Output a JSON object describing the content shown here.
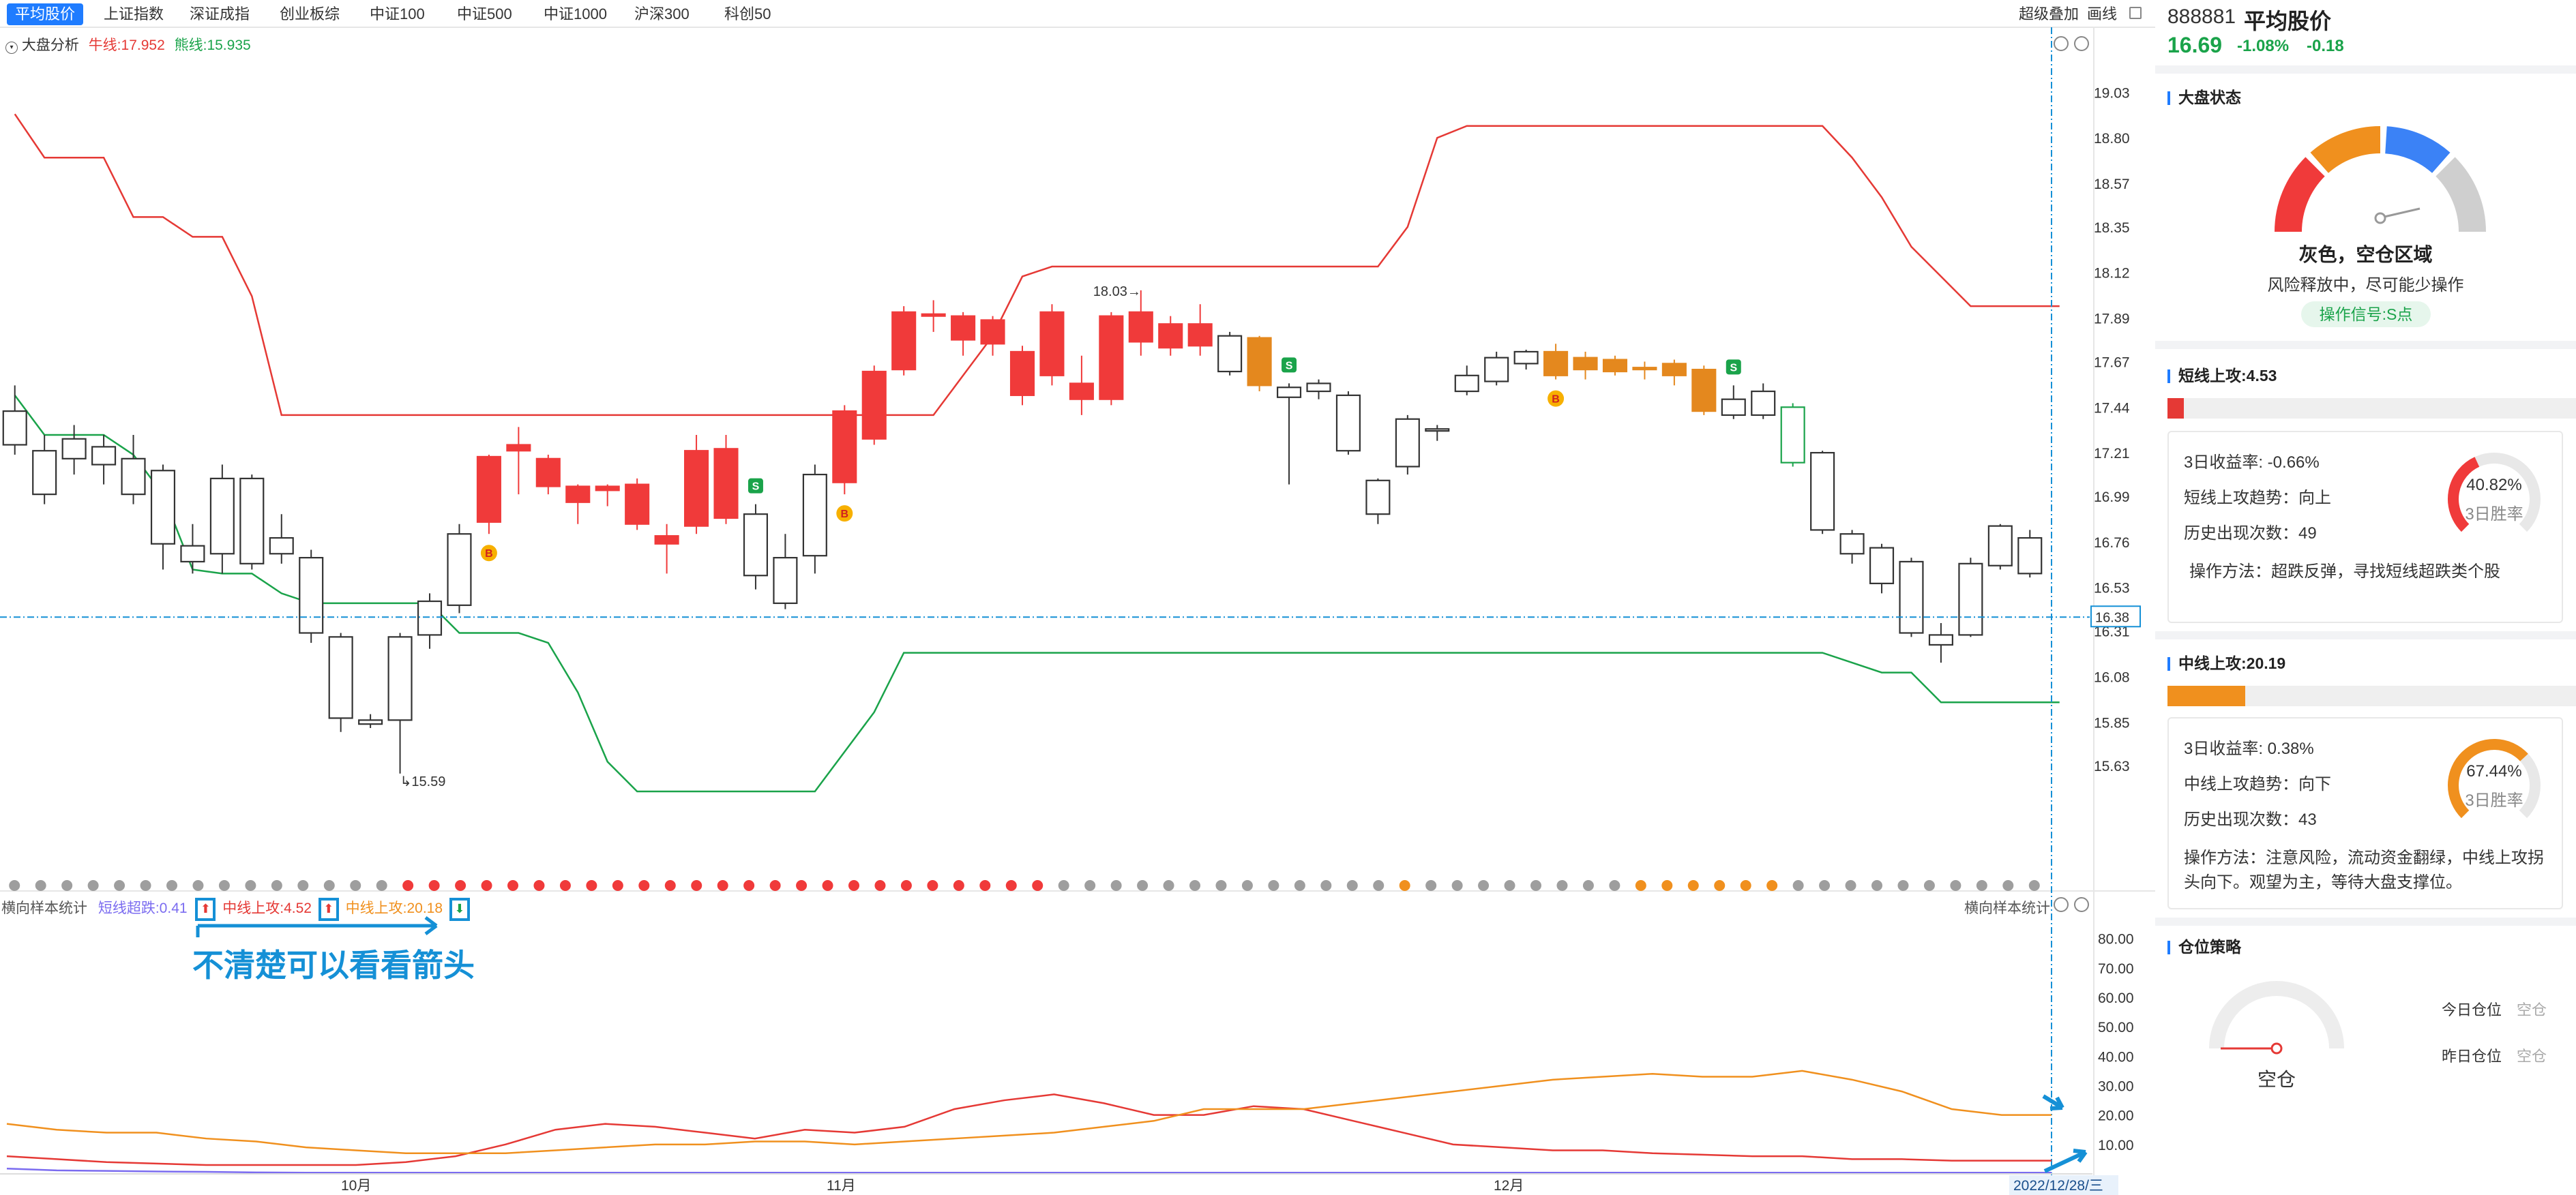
{
  "tabs": [
    {
      "label": "平均股价",
      "active": true
    },
    {
      "label": "上证指数"
    },
    {
      "label": "深证成指"
    },
    {
      "label": "创业板综"
    },
    {
      "label": "中证100"
    },
    {
      "label": "中证500"
    },
    {
      "label": "中证1000"
    },
    {
      "label": "沪深300"
    },
    {
      "label": "科创50"
    }
  ],
  "toolbar": {
    "overlay": "超级叠加",
    "draw": "画线"
  },
  "main_indicator": {
    "name": "大盘分析",
    "bull": "牛线:17.952",
    "bear": "熊线:15.935"
  },
  "sub_indicator": {
    "name": "横向样本统计",
    "short": "短线超跌:0.41",
    "mid": "中线上攻:4.52",
    "mid2": "中线上攻:20.18",
    "right_name": "横向样本统计"
  },
  "annotation": {
    "text": "不清楚可以看看箭头"
  },
  "chart_data": [
    {
      "type": "candlestick",
      "title": "大盘分析",
      "y_ticks": [
        "19.03",
        "18.80",
        "18.57",
        "18.35",
        "18.12",
        "17.89",
        "17.67",
        "17.44",
        "17.21",
        "16.99",
        "16.76",
        "16.53",
        "16.31",
        "16.08",
        "15.85",
        "15.63"
      ],
      "ylim": [
        15.4,
        19.1
      ],
      "crosshair_value": "16.38",
      "high_label": "18.03",
      "low_label": "15.59",
      "x_labels": [
        "10月",
        "11月",
        "12月"
      ],
      "date_label": "2022/12/28/三",
      "candles": [
        [
          17.42,
          17.25,
          17.55,
          17.2,
          "w"
        ],
        [
          17.22,
          17.0,
          17.3,
          16.95,
          "w"
        ],
        [
          17.18,
          17.28,
          17.35,
          17.1,
          "w"
        ],
        [
          17.15,
          17.24,
          17.3,
          17.05,
          "w"
        ],
        [
          17.18,
          17.0,
          17.3,
          16.95,
          "w"
        ],
        [
          17.12,
          16.75,
          17.15,
          16.62,
          "w"
        ],
        [
          16.74,
          16.66,
          16.85,
          16.6,
          "w"
        ],
        [
          17.08,
          16.7,
          17.15,
          16.6,
          "w"
        ],
        [
          17.08,
          16.65,
          17.1,
          16.62,
          "w"
        ],
        [
          16.78,
          16.7,
          16.9,
          16.65,
          "w"
        ],
        [
          16.68,
          16.3,
          16.72,
          16.25,
          "w"
        ],
        [
          16.28,
          15.87,
          16.3,
          15.8,
          "w"
        ],
        [
          15.86,
          15.84,
          15.89,
          15.82,
          "w"
        ],
        [
          16.28,
          15.86,
          16.3,
          15.59,
          "w"
        ],
        [
          16.46,
          16.29,
          16.5,
          16.22,
          "w"
        ],
        [
          16.8,
          16.44,
          16.85,
          16.4,
          "w"
        ],
        [
          16.86,
          17.19,
          17.2,
          16.8,
          "r"
        ],
        [
          17.22,
          17.25,
          17.34,
          17.0,
          "r"
        ],
        [
          17.18,
          17.04,
          17.2,
          17.0,
          "r"
        ],
        [
          17.04,
          16.96,
          17.05,
          16.85,
          "r"
        ],
        [
          17.04,
          17.02,
          17.05,
          16.94,
          "r"
        ],
        [
          17.05,
          16.85,
          17.08,
          16.82,
          "r"
        ],
        [
          16.79,
          16.75,
          16.85,
          16.6,
          "r"
        ],
        [
          16.84,
          17.22,
          17.3,
          16.8,
          "r"
        ],
        [
          16.88,
          17.23,
          17.3,
          16.85,
          "r"
        ],
        [
          16.9,
          16.59,
          16.95,
          16.52,
          "w"
        ],
        [
          16.68,
          16.45,
          16.8,
          16.42,
          "w"
        ],
        [
          16.69,
          17.1,
          17.15,
          16.6,
          "w"
        ],
        [
          17.06,
          17.42,
          17.45,
          17.0,
          "r"
        ],
        [
          17.28,
          17.62,
          17.65,
          17.25,
          "r"
        ],
        [
          17.92,
          17.63,
          17.95,
          17.6,
          "r"
        ],
        [
          17.9,
          17.91,
          17.98,
          17.82,
          "r"
        ],
        [
          17.9,
          17.78,
          17.92,
          17.7,
          "r"
        ],
        [
          17.76,
          17.88,
          17.9,
          17.7,
          "r"
        ],
        [
          17.72,
          17.5,
          17.75,
          17.45,
          "r"
        ],
        [
          17.92,
          17.6,
          17.96,
          17.55,
          "r"
        ],
        [
          17.56,
          17.48,
          17.7,
          17.4,
          "r"
        ],
        [
          17.9,
          17.48,
          17.92,
          17.45,
          "r"
        ],
        [
          17.92,
          17.77,
          18.03,
          17.7,
          "r"
        ],
        [
          17.86,
          17.74,
          17.9,
          17.7,
          "r"
        ],
        [
          17.86,
          17.75,
          17.96,
          17.7,
          "r"
        ],
        [
          17.8,
          17.62,
          17.82,
          17.6,
          "w"
        ],
        [
          17.79,
          17.55,
          17.8,
          17.52,
          "o"
        ],
        [
          17.49,
          17.54,
          17.56,
          17.05,
          "w"
        ],
        [
          17.56,
          17.52,
          17.58,
          17.48,
          "w"
        ],
        [
          17.5,
          17.22,
          17.52,
          17.2,
          "w"
        ],
        [
          17.07,
          16.9,
          17.08,
          16.85,
          "w"
        ],
        [
          17.38,
          17.14,
          17.4,
          17.1,
          "w"
        ],
        [
          17.33,
          17.32,
          17.35,
          17.27,
          "w"
        ],
        [
          17.6,
          17.52,
          17.65,
          17.5,
          "w"
        ],
        [
          17.69,
          17.57,
          17.72,
          17.55,
          "w"
        ],
        [
          17.72,
          17.66,
          17.73,
          17.63,
          "w"
        ],
        [
          17.72,
          17.6,
          17.76,
          17.58,
          "o"
        ],
        [
          17.69,
          17.63,
          17.72,
          17.58,
          "o"
        ],
        [
          17.68,
          17.62,
          17.7,
          17.6,
          "o"
        ],
        [
          17.64,
          17.63,
          17.67,
          17.58,
          "o"
        ],
        [
          17.66,
          17.6,
          17.68,
          17.55,
          "o"
        ],
        [
          17.63,
          17.42,
          17.65,
          17.4,
          "o"
        ],
        [
          17.48,
          17.4,
          17.55,
          17.38,
          "w"
        ],
        [
          17.52,
          17.4,
          17.56,
          17.38,
          "w"
        ],
        [
          17.44,
          17.16,
          17.46,
          17.14,
          "g"
        ],
        [
          17.21,
          16.82,
          17.22,
          16.8,
          "w"
        ],
        [
          16.8,
          16.7,
          16.82,
          16.65,
          "w"
        ],
        [
          16.73,
          16.55,
          16.75,
          16.5,
          "w"
        ],
        [
          16.66,
          16.3,
          16.68,
          16.28,
          "w"
        ],
        [
          16.29,
          16.24,
          16.35,
          16.15,
          "w"
        ],
        [
          16.65,
          16.29,
          16.68,
          16.28,
          "w"
        ],
        [
          16.84,
          16.64,
          16.85,
          16.62,
          "w"
        ],
        [
          16.78,
          16.6,
          16.82,
          16.58,
          "w"
        ]
      ],
      "bull_line": [
        18.92,
        18.7,
        18.7,
        18.7,
        18.4,
        18.4,
        18.3,
        18.3,
        18.0,
        17.4,
        17.4,
        17.4,
        17.4,
        17.4,
        17.4,
        17.4,
        17.4,
        17.4,
        17.4,
        17.4,
        17.4,
        17.4,
        17.4,
        17.4,
        17.4,
        17.4,
        17.4,
        17.4,
        17.4,
        17.4,
        17.4,
        17.4,
        17.6,
        17.8,
        18.1,
        18.15,
        18.15,
        18.15,
        18.15,
        18.15,
        18.15,
        18.15,
        18.15,
        18.15,
        18.15,
        18.15,
        18.15,
        18.35,
        18.8,
        18.86,
        18.86,
        18.86,
        18.86,
        18.86,
        18.86,
        18.86,
        18.86,
        18.86,
        18.86,
        18.86,
        18.86,
        18.86,
        18.7,
        18.5,
        18.25,
        18.1,
        17.95,
        17.95,
        17.95,
        17.95
      ],
      "bear_line": [
        17.5,
        17.3,
        17.3,
        17.3,
        17.2,
        17.0,
        16.62,
        16.6,
        16.6,
        16.5,
        16.45,
        16.45,
        16.45,
        16.45,
        16.45,
        16.3,
        16.3,
        16.3,
        16.25,
        16.0,
        15.65,
        15.5,
        15.5,
        15.5,
        15.5,
        15.5,
        15.5,
        15.5,
        15.7,
        15.9,
        16.2,
        16.2,
        16.2,
        16.2,
        16.2,
        16.2,
        16.2,
        16.2,
        16.2,
        16.2,
        16.2,
        16.2,
        16.2,
        16.2,
        16.2,
        16.2,
        16.2,
        16.2,
        16.2,
        16.2,
        16.2,
        16.2,
        16.2,
        16.2,
        16.2,
        16.2,
        16.2,
        16.2,
        16.2,
        16.2,
        16.2,
        16.2,
        16.15,
        16.1,
        16.1,
        15.95,
        15.95,
        15.95,
        15.95,
        15.95
      ],
      "signals": [
        {
          "i": 16,
          "label": "B",
          "type": "buy"
        },
        {
          "i": 25,
          "label": "S",
          "type": "sell"
        },
        {
          "i": 28,
          "label": "B",
          "type": "buy"
        },
        {
          "i": 43,
          "label": "S",
          "type": "sell"
        },
        {
          "i": 52,
          "label": "B",
          "type": "buy"
        },
        {
          "i": 58,
          "label": "S",
          "type": "sell"
        }
      ],
      "dot_colors": "gggggggggggggggrrrrrrrrrrrrrrrrrrrrrrrrrgggggggggggggoggggggggoooooogggggggggg"
    },
    {
      "type": "line",
      "title": "横向样本统计",
      "y_ticks": [
        "80.00",
        "70.00",
        "60.00",
        "50.00",
        "40.00",
        "30.00",
        "20.00",
        "10.00"
      ],
      "ylim": [
        0,
        85
      ],
      "series": [
        {
          "name": "短线超跌",
          "color": "#7b6cf0",
          "values": [
            1.8,
            1.2,
            1.0,
            0.8,
            0.7,
            0.5,
            0.4,
            0.4,
            0.4,
            0.4,
            0.4,
            0.4,
            0.4,
            0.4,
            0.4,
            0.4,
            0.4,
            0.4,
            0.4,
            0.4,
            0.4,
            0.4,
            0.4,
            0.4,
            0.4,
            0.4,
            0.4,
            0.4,
            0.4,
            0.4,
            0.4,
            0.4,
            0.4,
            0.4,
            0.4,
            0.4,
            0.4,
            0.4,
            0.4,
            0.4,
            0.4,
            0.4
          ]
        },
        {
          "name": "中线上攻",
          "color": "#e53935",
          "values": [
            6,
            5,
            4,
            3.5,
            3,
            3,
            3,
            3,
            4,
            6,
            10,
            15,
            17,
            16,
            14,
            12,
            15,
            14,
            16,
            22,
            25,
            27,
            24,
            20,
            20,
            23,
            22,
            18,
            14,
            10,
            9,
            8,
            8,
            7,
            6.5,
            6,
            6,
            5,
            5,
            4.5,
            4.5,
            4.5
          ]
        },
        {
          "name": "中线上攻",
          "color": "#f0901e",
          "values": [
            17,
            15,
            14,
            14,
            12,
            11,
            9,
            8,
            7,
            7,
            7,
            8,
            9,
            10,
            10,
            11,
            11,
            10,
            11,
            12,
            13,
            14,
            16,
            18,
            22,
            22,
            22,
            24,
            26,
            28,
            30,
            32,
            33,
            34,
            33,
            33,
            35,
            32,
            28,
            22,
            20,
            20
          ]
        }
      ]
    }
  ],
  "panel": {
    "code": "888881",
    "name": "平均股价",
    "price": "16.69",
    "change_pct": "-1.08%",
    "change": "-0.18",
    "market": {
      "title": "大盘状态",
      "status": "灰色，空仓区域",
      "desc": "风险释放中，尽可能少操作",
      "signal": "操作信号:S点"
    },
    "short": {
      "title": "短线上攻:4.53",
      "progress": 0.04,
      "rows": [
        "3日收益率:  -0.66%",
        "短线上攻趋势：向上",
        "历史出现次数：49"
      ],
      "method": "操作方法：超跌反弹，寻找短线超跌类个股",
      "winrate": "40.82%",
      "winrate_value": 40.82,
      "winrate_label": "3日胜率"
    },
    "mid": {
      "title": "中线上攻:20.19",
      "progress": 0.19,
      "rows": [
        "3日收益率:  0.38%",
        "中线上攻趋势：向下",
        "历史出现次数：43"
      ],
      "method_lines": [
        "操作方法：注意风险，流动资金翻绿，中线上攻拐",
        "头向下。观望为主，等待大盘支撑位。"
      ],
      "winrate": "67.44%",
      "winrate_value": 67.44,
      "winrate_label": "3日胜率"
    },
    "position": {
      "title": "仓位策略",
      "gauge_label": "空仓",
      "today_label": "今日仓位",
      "today_value": "空仓",
      "yesterday_label": "昨日仓位",
      "yesterday_value": "空仓"
    }
  },
  "colors": {
    "up": "#f03a3a",
    "down_green": "#1aa34a",
    "accent": "#1f7cff",
    "orange": "#e4881e",
    "gray": "#999999"
  }
}
